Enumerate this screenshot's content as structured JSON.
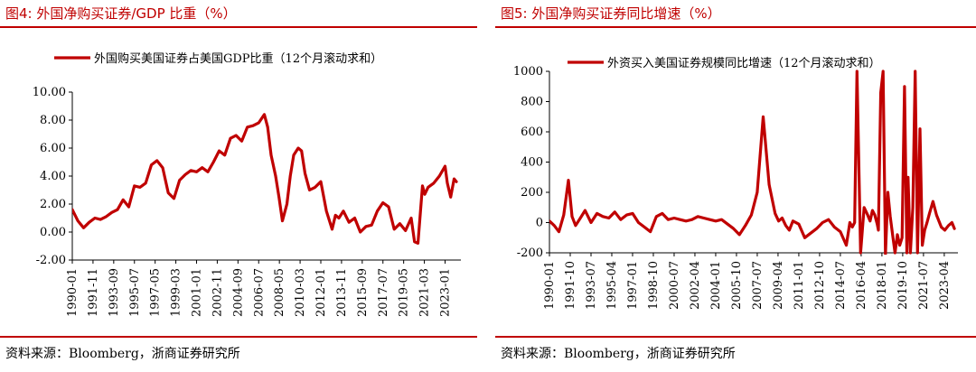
{
  "figures": [
    {
      "title": "图4:  外国净购买证券/GDP 比重（%）",
      "source": "资料来源：Bloomberg，浙商证券研究所"
    },
    {
      "title": "图5:  外国净购买证券同比增速（%）",
      "source": "资料来源：Bloomberg，浙商证券研究所"
    }
  ],
  "chart_data": [
    {
      "type": "line",
      "title": "",
      "xlabel": "",
      "ylabel": "",
      "ylim": [
        -2,
        10
      ],
      "y_ticks": [
        "10.00",
        "8.00",
        "6.00",
        "4.00",
        "2.00",
        "0.00",
        "-2.00"
      ],
      "x_ticks": [
        "1990-01",
        "1991-11",
        "1993-09",
        "1995-07",
        "1997-05",
        "1999-03",
        "2001-01",
        "2002-11",
        "2004-09",
        "2006-07",
        "2008-05",
        "2010-03",
        "2012-01",
        "2013-11",
        "2015-09",
        "2017-07",
        "2019-05",
        "2021-03",
        "2023-01"
      ],
      "legend_position": "top",
      "grid": false,
      "series_color": "#c00000",
      "series": [
        {
          "name": "外国购买美国证券占美国GDP比重（12个月滚动求和）",
          "x": [
            1990.0,
            1990.5,
            1991.0,
            1991.5,
            1992.0,
            1992.5,
            1993.0,
            1993.5,
            1994.0,
            1994.5,
            1995.0,
            1995.5,
            1996.0,
            1996.5,
            1997.0,
            1997.5,
            1998.0,
            1998.5,
            1999.0,
            1999.5,
            2000.0,
            2000.5,
            2001.0,
            2001.5,
            2002.0,
            2002.5,
            2003.0,
            2003.5,
            2004.0,
            2004.5,
            2005.0,
            2005.5,
            2006.0,
            2006.5,
            2007.0,
            2007.3,
            2007.6,
            2008.0,
            2008.3,
            2008.6,
            2009.0,
            2009.3,
            2009.6,
            2010.0,
            2010.3,
            2010.6,
            2011.0,
            2011.5,
            2012.0,
            2012.5,
            2013.0,
            2013.3,
            2013.6,
            2014.0,
            2014.5,
            2015.0,
            2015.5,
            2016.0,
            2016.5,
            2017.0,
            2017.5,
            2018.0,
            2018.5,
            2019.0,
            2019.5,
            2020.0,
            2020.3,
            2020.6,
            2021.0,
            2021.2,
            2021.5,
            2022.0,
            2022.5,
            2023.0,
            2023.2,
            2023.5,
            2023.8,
            2024.0
          ],
          "values": [
            1.6,
            0.8,
            0.3,
            0.7,
            1.0,
            0.9,
            1.1,
            1.4,
            1.6,
            2.3,
            1.8,
            3.3,
            3.2,
            3.5,
            4.8,
            5.1,
            4.6,
            2.8,
            2.4,
            3.7,
            4.1,
            4.4,
            4.3,
            4.6,
            4.3,
            5.0,
            5.8,
            5.5,
            6.7,
            6.9,
            6.5,
            7.5,
            7.6,
            7.8,
            8.4,
            7.5,
            5.5,
            4.0,
            2.5,
            0.8,
            2.0,
            4.0,
            5.5,
            6.0,
            5.8,
            4.2,
            3.0,
            3.2,
            3.6,
            1.5,
            0.2,
            1.2,
            1.0,
            1.5,
            0.7,
            1.0,
            0.0,
            0.4,
            0.5,
            1.5,
            2.1,
            1.8,
            0.2,
            0.6,
            0.1,
            1.0,
            -0.7,
            -0.8,
            3.3,
            2.7,
            3.2,
            3.5,
            4.0,
            4.7,
            3.5,
            2.5,
            3.8,
            3.6
          ]
        }
      ]
    },
    {
      "type": "line",
      "title": "",
      "xlabel": "",
      "ylabel": "",
      "ylim": [
        -200,
        1000
      ],
      "y_ticks": [
        "1000",
        "800",
        "600",
        "400",
        "200",
        "0",
        "-200"
      ],
      "x_ticks": [
        "1990-01",
        "1991-10",
        "1993-07",
        "1995-04",
        "1997-01",
        "1998-10",
        "2000-07",
        "2002-04",
        "2004-01",
        "2005-10",
        "2007-07",
        "2009-04",
        "2011-01",
        "2012-10",
        "2014-07",
        "2016-04",
        "2018-01",
        "2019-10",
        "2021-07",
        "2023-04"
      ],
      "legend_position": "top",
      "grid": false,
      "series_color": "#c00000",
      "series": [
        {
          "name": "外资买入美国证券规模同比增速（12个月滚动求和）",
          "x": [
            1990.0,
            1990.4,
            1990.8,
            1991.2,
            1991.6,
            1991.9,
            1992.2,
            1992.6,
            1993.0,
            1993.5,
            1994.0,
            1994.5,
            1995.0,
            1995.5,
            1996.0,
            1996.5,
            1997.0,
            1997.5,
            1998.0,
            1998.5,
            1999.0,
            1999.5,
            2000.0,
            2000.5,
            2001.0,
            2001.5,
            2002.0,
            2002.5,
            2003.0,
            2003.5,
            2004.0,
            2004.5,
            2005.0,
            2005.5,
            2006.0,
            2006.5,
            2007.0,
            2007.5,
            2008.0,
            2008.5,
            2009.0,
            2009.3,
            2009.6,
            2009.9,
            2010.2,
            2010.5,
            2011.0,
            2011.5,
            2012.0,
            2012.5,
            2013.0,
            2013.5,
            2014.0,
            2014.5,
            2015.0,
            2015.3,
            2015.5,
            2015.7,
            2015.9,
            2016.2,
            2016.5,
            2016.8,
            2017.0,
            2017.2,
            2017.4,
            2017.6,
            2017.7,
            2017.9,
            2018.1,
            2018.3,
            2018.5,
            2018.7,
            2018.9,
            2019.1,
            2019.3,
            2019.5,
            2019.7,
            2019.9,
            2020.1,
            2020.2,
            2020.4,
            2020.6,
            2020.8,
            2021.0,
            2021.2,
            2021.4,
            2021.6,
            2021.8,
            2022.0,
            2022.3,
            2022.6,
            2023.0,
            2023.3,
            2023.6,
            2023.9,
            2024.1
          ],
          "values": [
            10,
            -20,
            -60,
            50,
            280,
            40,
            -20,
            30,
            80,
            0,
            60,
            40,
            30,
            70,
            20,
            50,
            60,
            0,
            -30,
            -60,
            40,
            60,
            20,
            30,
            20,
            10,
            20,
            40,
            30,
            20,
            10,
            20,
            -10,
            -40,
            -80,
            -20,
            50,
            200,
            700,
            250,
            60,
            10,
            30,
            -20,
            -50,
            10,
            -10,
            -100,
            -70,
            -40,
            0,
            20,
            -30,
            -60,
            -150,
            0,
            -30,
            0,
            1000,
            -200,
            100,
            50,
            10,
            80,
            50,
            -10,
            -50,
            860,
            1000,
            -210,
            200,
            40,
            -80,
            -200,
            -80,
            -150,
            -100,
            900,
            -200,
            300,
            -200,
            100,
            1000,
            -200,
            620,
            -150,
            -50,
            0,
            60,
            140,
            50,
            -30,
            -50,
            -20,
            0,
            -40
          ]
        }
      ]
    }
  ]
}
